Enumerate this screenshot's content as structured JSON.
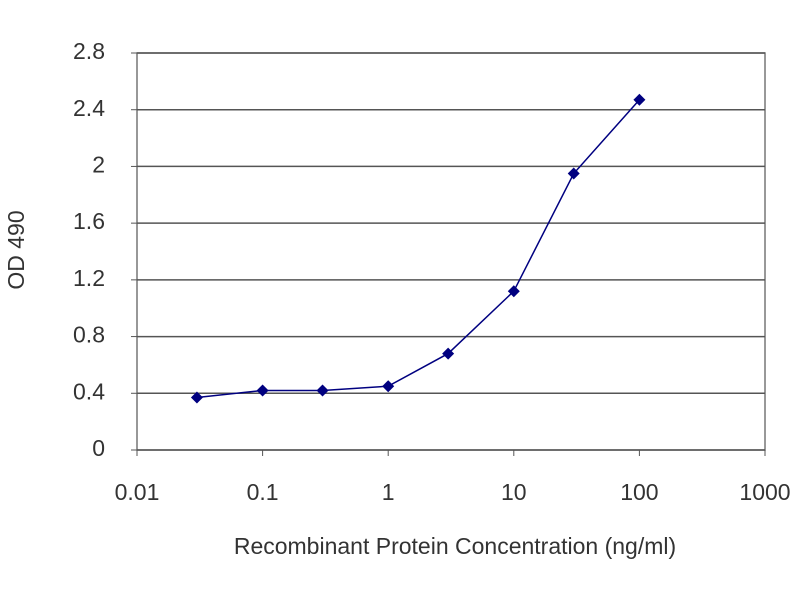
{
  "chart_data": {
    "type": "line",
    "xlabel": "Recombinant Protein Concentration (ng/ml)",
    "ylabel": "OD 490",
    "x": [
      0.03,
      0.1,
      0.3,
      1,
      3,
      10,
      30,
      100
    ],
    "values": [
      0.37,
      0.42,
      0.42,
      0.45,
      0.68,
      1.12,
      1.95,
      2.47
    ],
    "color": "#000080",
    "xscale": "log",
    "xlim": [
      0.01,
      1000
    ],
    "xticks": [
      0.01,
      0.1,
      1,
      10,
      100,
      1000
    ],
    "ylim": [
      0,
      2.8
    ],
    "yticks": [
      0,
      0.4,
      0.8,
      1.2,
      1.6,
      2,
      2.4,
      2.8
    ],
    "grid": true
  }
}
